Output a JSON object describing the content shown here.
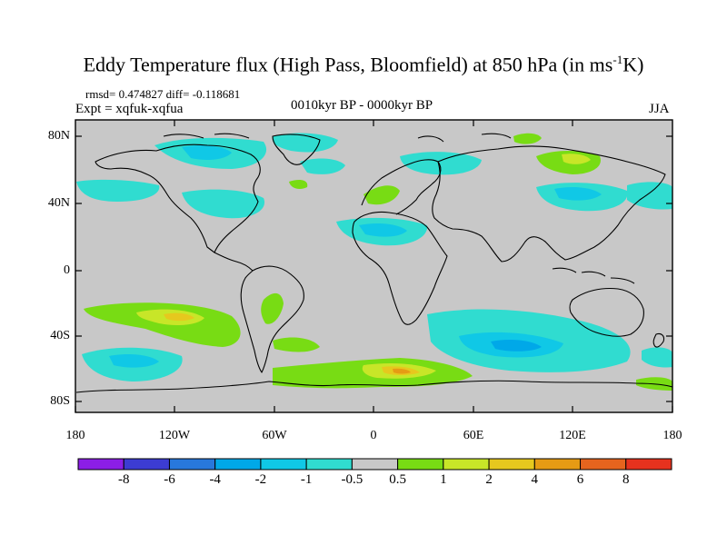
{
  "title": "Eddy Temperature flux (High Pass, Bloomfield) at 850 hPa (in ms",
  "title_sup": "-1",
  "title_end": "K)",
  "stats": "rmsd= 0.474827 diff= -0.118681",
  "experiment": "Expt = xqfuk-xqfua",
  "period": "0010kyr BP - 0000kyr BP",
  "season": "JJA",
  "lat_labels": [
    "80N",
    "40N",
    "0",
    "40S",
    "80S"
  ],
  "lon_labels": [
    "180",
    "120W",
    "60W",
    "0",
    "60E",
    "120E",
    "180"
  ],
  "colorbar": {
    "labels": [
      "-8",
      "-6",
      "-4",
      "-2",
      "-1",
      "-0.5",
      "0.5",
      "1",
      "2",
      "4",
      "6",
      "8"
    ],
    "colors": [
      "#8c1ee6",
      "#3c3cd2",
      "#2878dc",
      "#00a8e8",
      "#10c8e6",
      "#30dcd0",
      "#c8c8c8",
      "#78dc14",
      "#c8e628",
      "#e6c81e",
      "#e69b14",
      "#e6641e",
      "#e6321e"
    ]
  },
  "map_colors": {
    "background": "#c8c8c8",
    "coast": "#000000"
  }
}
